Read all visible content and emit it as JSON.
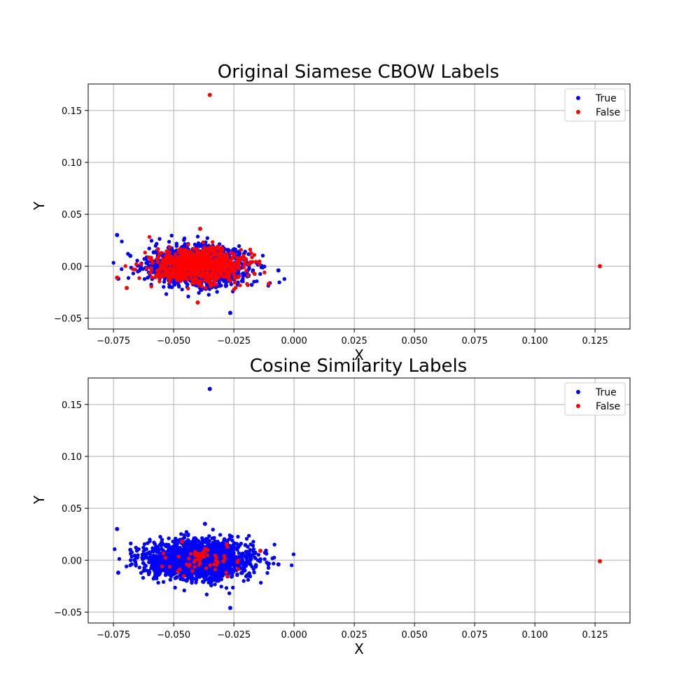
{
  "chart_data": [
    {
      "type": "scatter",
      "title": "Original Siamese CBOW Labels",
      "xlabel": "X",
      "ylabel": "Y",
      "xlim": [
        -0.0855,
        0.1395
      ],
      "ylim": [
        -0.0605,
        0.1755
      ],
      "x_ticks": [
        "−0.075",
        "−0.050",
        "−0.025",
        "0.000",
        "0.025",
        "0.050",
        "0.075",
        "0.100",
        "0.125"
      ],
      "y_ticks": [
        "−0.05",
        "0.00",
        "0.05",
        "0.10",
        "0.15"
      ],
      "grid": true,
      "legend_position": "top-right",
      "series": [
        {
          "name": "True",
          "color": "#0000ff",
          "cluster": {
            "center": [
              -0.04,
              0.0
            ],
            "spread": [
              0.01,
              0.009
            ],
            "count": 1500
          },
          "points": [
            [
              -0.0735,
              0.03
            ],
            [
              -0.0265,
              -0.045
            ],
            [
              -0.0065,
              -0.004
            ],
            [
              -0.073,
              -0.012
            ],
            [
              -0.068,
              0.01
            ]
          ]
        },
        {
          "name": "False",
          "color": "#ff0000",
          "cluster": {
            "center": [
              -0.04,
              0.0
            ],
            "spread": [
              0.0095,
              0.008
            ],
            "count": 900
          },
          "points": [
            [
              -0.035,
              0.165
            ],
            [
              0.127,
              0.0
            ],
            [
              -0.0735,
              -0.011
            ],
            [
              -0.0105,
              -0.017
            ],
            [
              -0.039,
              0.036
            ],
            [
              -0.04,
              -0.035
            ],
            [
              -0.0695,
              -0.021
            ]
          ]
        }
      ]
    },
    {
      "type": "scatter",
      "title": "Cosine Similarity Labels",
      "xlabel": "X",
      "ylabel": "Y",
      "xlim": [
        -0.0855,
        0.1395
      ],
      "ylim": [
        -0.0605,
        0.1755
      ],
      "x_ticks": [
        "−0.075",
        "−0.050",
        "−0.025",
        "0.000",
        "0.025",
        "0.050",
        "0.075",
        "0.100",
        "0.125"
      ],
      "y_ticks": [
        "−0.05",
        "0.00",
        "0.05",
        "0.10",
        "0.15"
      ],
      "grid": true,
      "legend_position": "top-right",
      "series": [
        {
          "name": "True",
          "color": "#0000ff",
          "cluster": {
            "center": [
              -0.04,
              0.0
            ],
            "spread": [
              0.0105,
              0.009
            ],
            "count": 2200
          },
          "points": [
            [
              -0.035,
              0.165
            ],
            [
              -0.0735,
              0.03
            ],
            [
              -0.0265,
              -0.046
            ],
            [
              -0.0065,
              -0.004
            ],
            [
              -0.073,
              -0.012
            ],
            [
              -0.068,
              0.01
            ],
            [
              -0.037,
              0.035
            ]
          ]
        },
        {
          "name": "False",
          "color": "#ff0000",
          "cluster": {
            "center": [
              -0.04,
              0.0
            ],
            "spread": [
              0.008,
              0.007
            ],
            "count": 60
          },
          "points": [
            [
              0.127,
              -0.001
            ],
            [
              -0.014,
              0.009
            ],
            [
              -0.0465,
              0.018
            ]
          ]
        }
      ]
    }
  ]
}
